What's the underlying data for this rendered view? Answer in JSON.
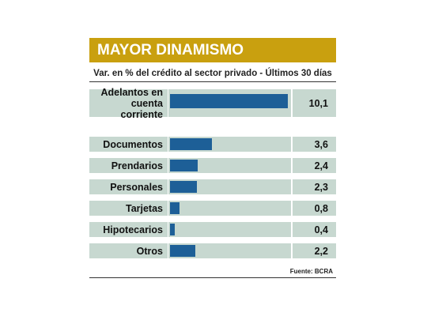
{
  "chart_data": {
    "type": "bar",
    "title": "MAYOR DINAMISMO",
    "subtitle": "Var. en % del crédito al sector privado - Últimos 30 días",
    "categories": [
      "Adelantos en cuenta corriente",
      "Documentos",
      "Prendarios",
      "Personales",
      "Tarjetas",
      "Hipotecarios",
      "Otros"
    ],
    "values": [
      10.1,
      3.6,
      2.4,
      2.3,
      0.8,
      0.4,
      2.2
    ],
    "value_labels": [
      "10,1",
      "3,6",
      "2,4",
      "2,3",
      "0,8",
      "0,4",
      "2,2"
    ],
    "color": "#1d5f97",
    "source": "Fuente: BCRA"
  }
}
